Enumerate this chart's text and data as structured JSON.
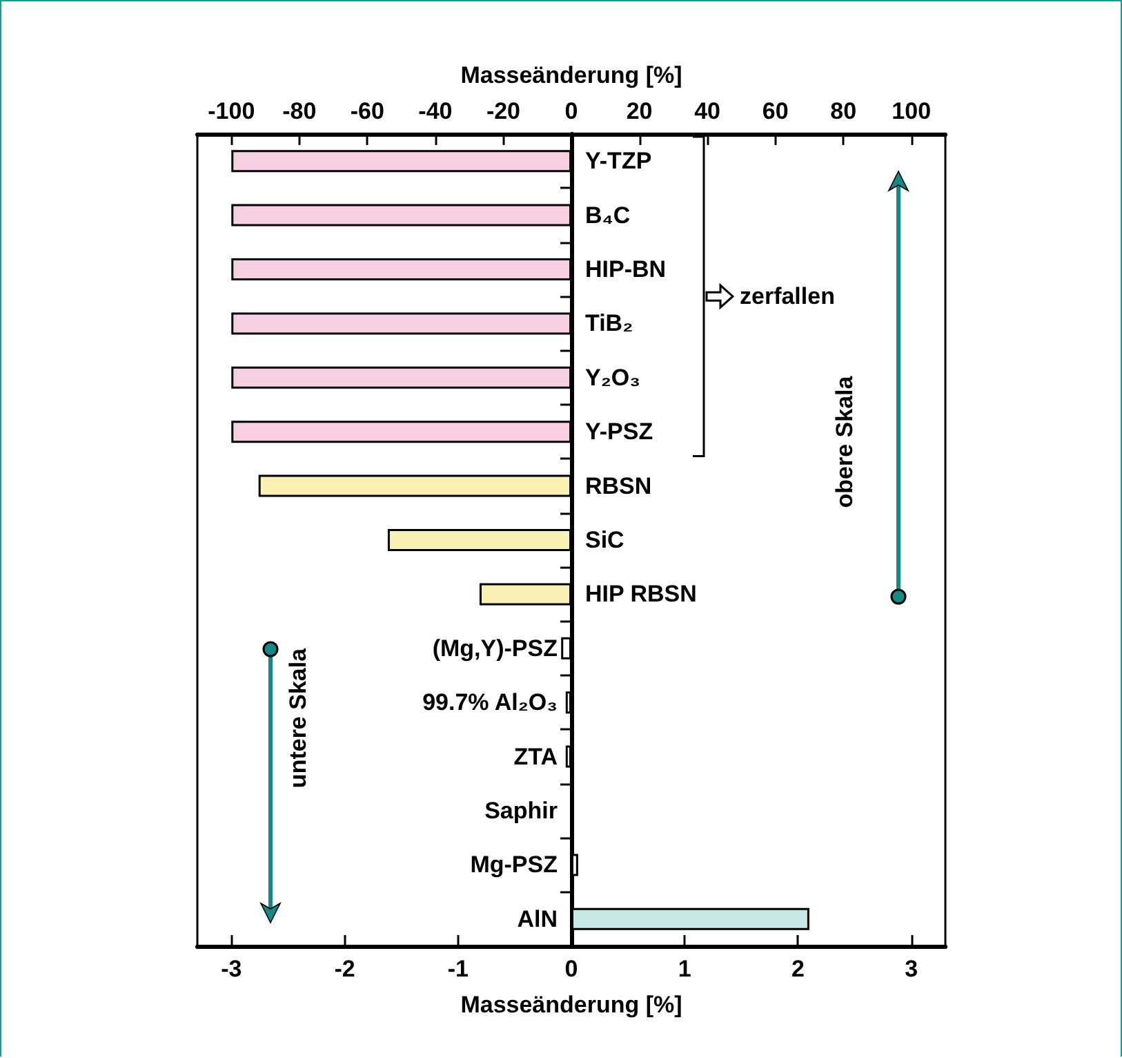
{
  "chart_data": {
    "type": "bar",
    "orientation": "horizontal",
    "categories": [
      "Y-TZP",
      "B₄C",
      "HIP-BN",
      "TiB₂",
      "Y₂O₃",
      "Y-PSZ",
      "RBSN",
      "SiC",
      "HIP RBSN",
      "(Mg,Y)-PSZ",
      "99.7% Al₂O₃",
      "ZTA",
      "Saphir",
      "Mg-PSZ",
      "AlN"
    ],
    "series": [
      {
        "axis": "x2",
        "values": [
          -100,
          -100,
          -100,
          -100,
          -100,
          -100,
          -92,
          -54,
          -27,
          null,
          null,
          null,
          null,
          null,
          null
        ],
        "colors": [
          "#f6cfe2",
          "#f6cfe2",
          "#f6cfe2",
          "#f6cfe2",
          "#f6cfe2",
          "#f6cfe2",
          "#faf2b4",
          "#faf2b4",
          "#faf2b4",
          null,
          null,
          null,
          null,
          null,
          null
        ]
      },
      {
        "values": [
          null,
          null,
          null,
          null,
          null,
          null,
          null,
          null,
          null,
          -0.09,
          -0.05,
          -0.05,
          0,
          0.06,
          2.1
        ],
        "colors": [
          null,
          null,
          null,
          null,
          null,
          null,
          null,
          null,
          null,
          "#ffffff",
          "#ffffff",
          "#ffffff",
          "#ffffff",
          "#ffffff",
          "#c7e8e4"
        ]
      }
    ],
    "xlabel": "Masseänderung [%]",
    "x2label": "Masseänderung [%]",
    "xlim": [
      -3.3,
      3.3
    ],
    "xticks": [
      -3,
      -2,
      -1,
      0,
      1,
      2,
      3
    ],
    "x2lim": [
      -110,
      110
    ],
    "x2ticks": [
      -100,
      -80,
      -60,
      -40,
      -20,
      0,
      20,
      40,
      60,
      80,
      100
    ],
    "annotations": [
      "zerfallen",
      "obere Skala",
      "untere Skala"
    ]
  }
}
